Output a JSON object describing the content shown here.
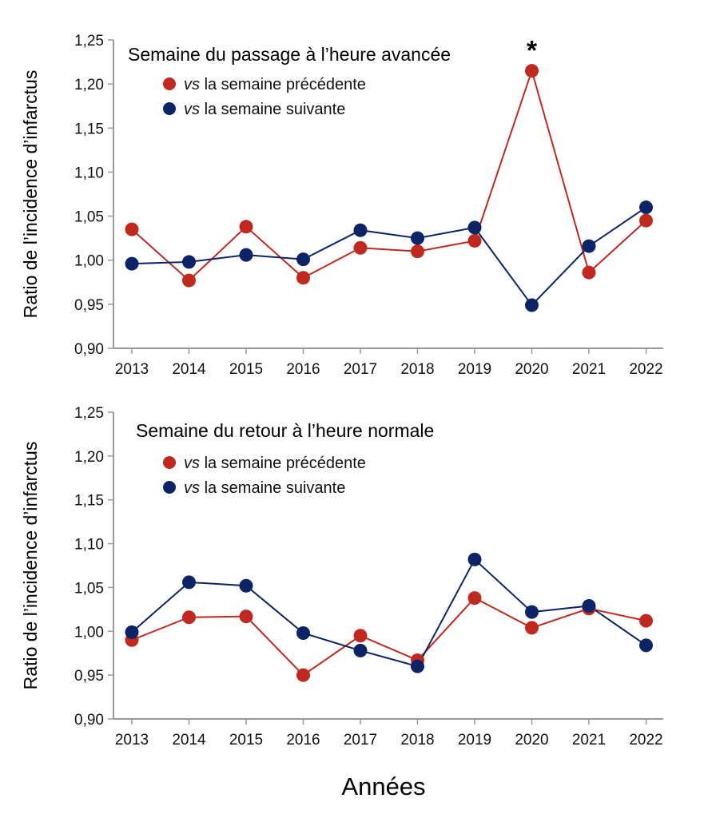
{
  "figure": {
    "xtitle": "Années",
    "colors": {
      "red": "#c0291f",
      "blue": "#0c2366",
      "axis": "#999999"
    }
  },
  "chart_data": [
    {
      "type": "line",
      "title": "Semaine du passage à l’heure avancée",
      "xlabel": "Années",
      "ylabel": "Ratio de l’incidence d’infarctus",
      "categories": [
        "2013",
        "2014",
        "2015",
        "2016",
        "2017",
        "2018",
        "2019",
        "2020",
        "2021",
        "2022"
      ],
      "ylim": [
        0.9,
        1.25
      ],
      "yticks": [
        "0,90",
        "0,95",
        "1,00",
        "1,05",
        "1,10",
        "1,15",
        "1,20",
        "1,25"
      ],
      "ytick_values": [
        0.9,
        0.95,
        1.0,
        1.05,
        1.1,
        1.15,
        1.2,
        1.25
      ],
      "grid": false,
      "legend_position": "top-left",
      "series": [
        {
          "name_em": "vs",
          "name": "la semaine précédente",
          "color": "#c0291f",
          "values": [
            1.035,
            0.977,
            1.038,
            0.98,
            1.014,
            1.01,
            1.022,
            1.215,
            0.986,
            1.045
          ]
        },
        {
          "name_em": "vs",
          "name": "la semaine suivante",
          "color": "#0c2366",
          "values": [
            0.996,
            0.998,
            1.006,
            1.001,
            1.034,
            1.025,
            1.037,
            0.949,
            1.016,
            1.06
          ]
        }
      ],
      "annotations": [
        {
          "text": "*",
          "category": "2020",
          "series": 0
        }
      ]
    },
    {
      "type": "line",
      "title": "Semaine du retour à l’heure normale",
      "xlabel": "Années",
      "ylabel": "Ratio de l’incidence d’infarctus",
      "categories": [
        "2013",
        "2014",
        "2015",
        "2016",
        "2017",
        "2018",
        "2019",
        "2020",
        "2021",
        "2022"
      ],
      "ylim": [
        0.9,
        1.25
      ],
      "yticks": [
        "0,90",
        "0,95",
        "1,00",
        "1,05",
        "1,10",
        "1,15",
        "1,20",
        "1,25"
      ],
      "ytick_values": [
        0.9,
        0.95,
        1.0,
        1.05,
        1.1,
        1.15,
        1.2,
        1.25
      ],
      "grid": false,
      "legend_position": "top-left",
      "series": [
        {
          "name_em": "vs",
          "name": "la semaine précédente",
          "color": "#c0291f",
          "values": [
            0.99,
            1.016,
            1.017,
            0.95,
            0.995,
            0.967,
            1.038,
            1.004,
            1.026,
            1.012
          ]
        },
        {
          "name_em": "vs",
          "name": "la semaine suivante",
          "color": "#0c2366",
          "values": [
            0.999,
            1.056,
            1.052,
            0.998,
            0.978,
            0.96,
            1.082,
            1.022,
            1.029,
            0.984
          ]
        }
      ],
      "annotations": []
    }
  ]
}
